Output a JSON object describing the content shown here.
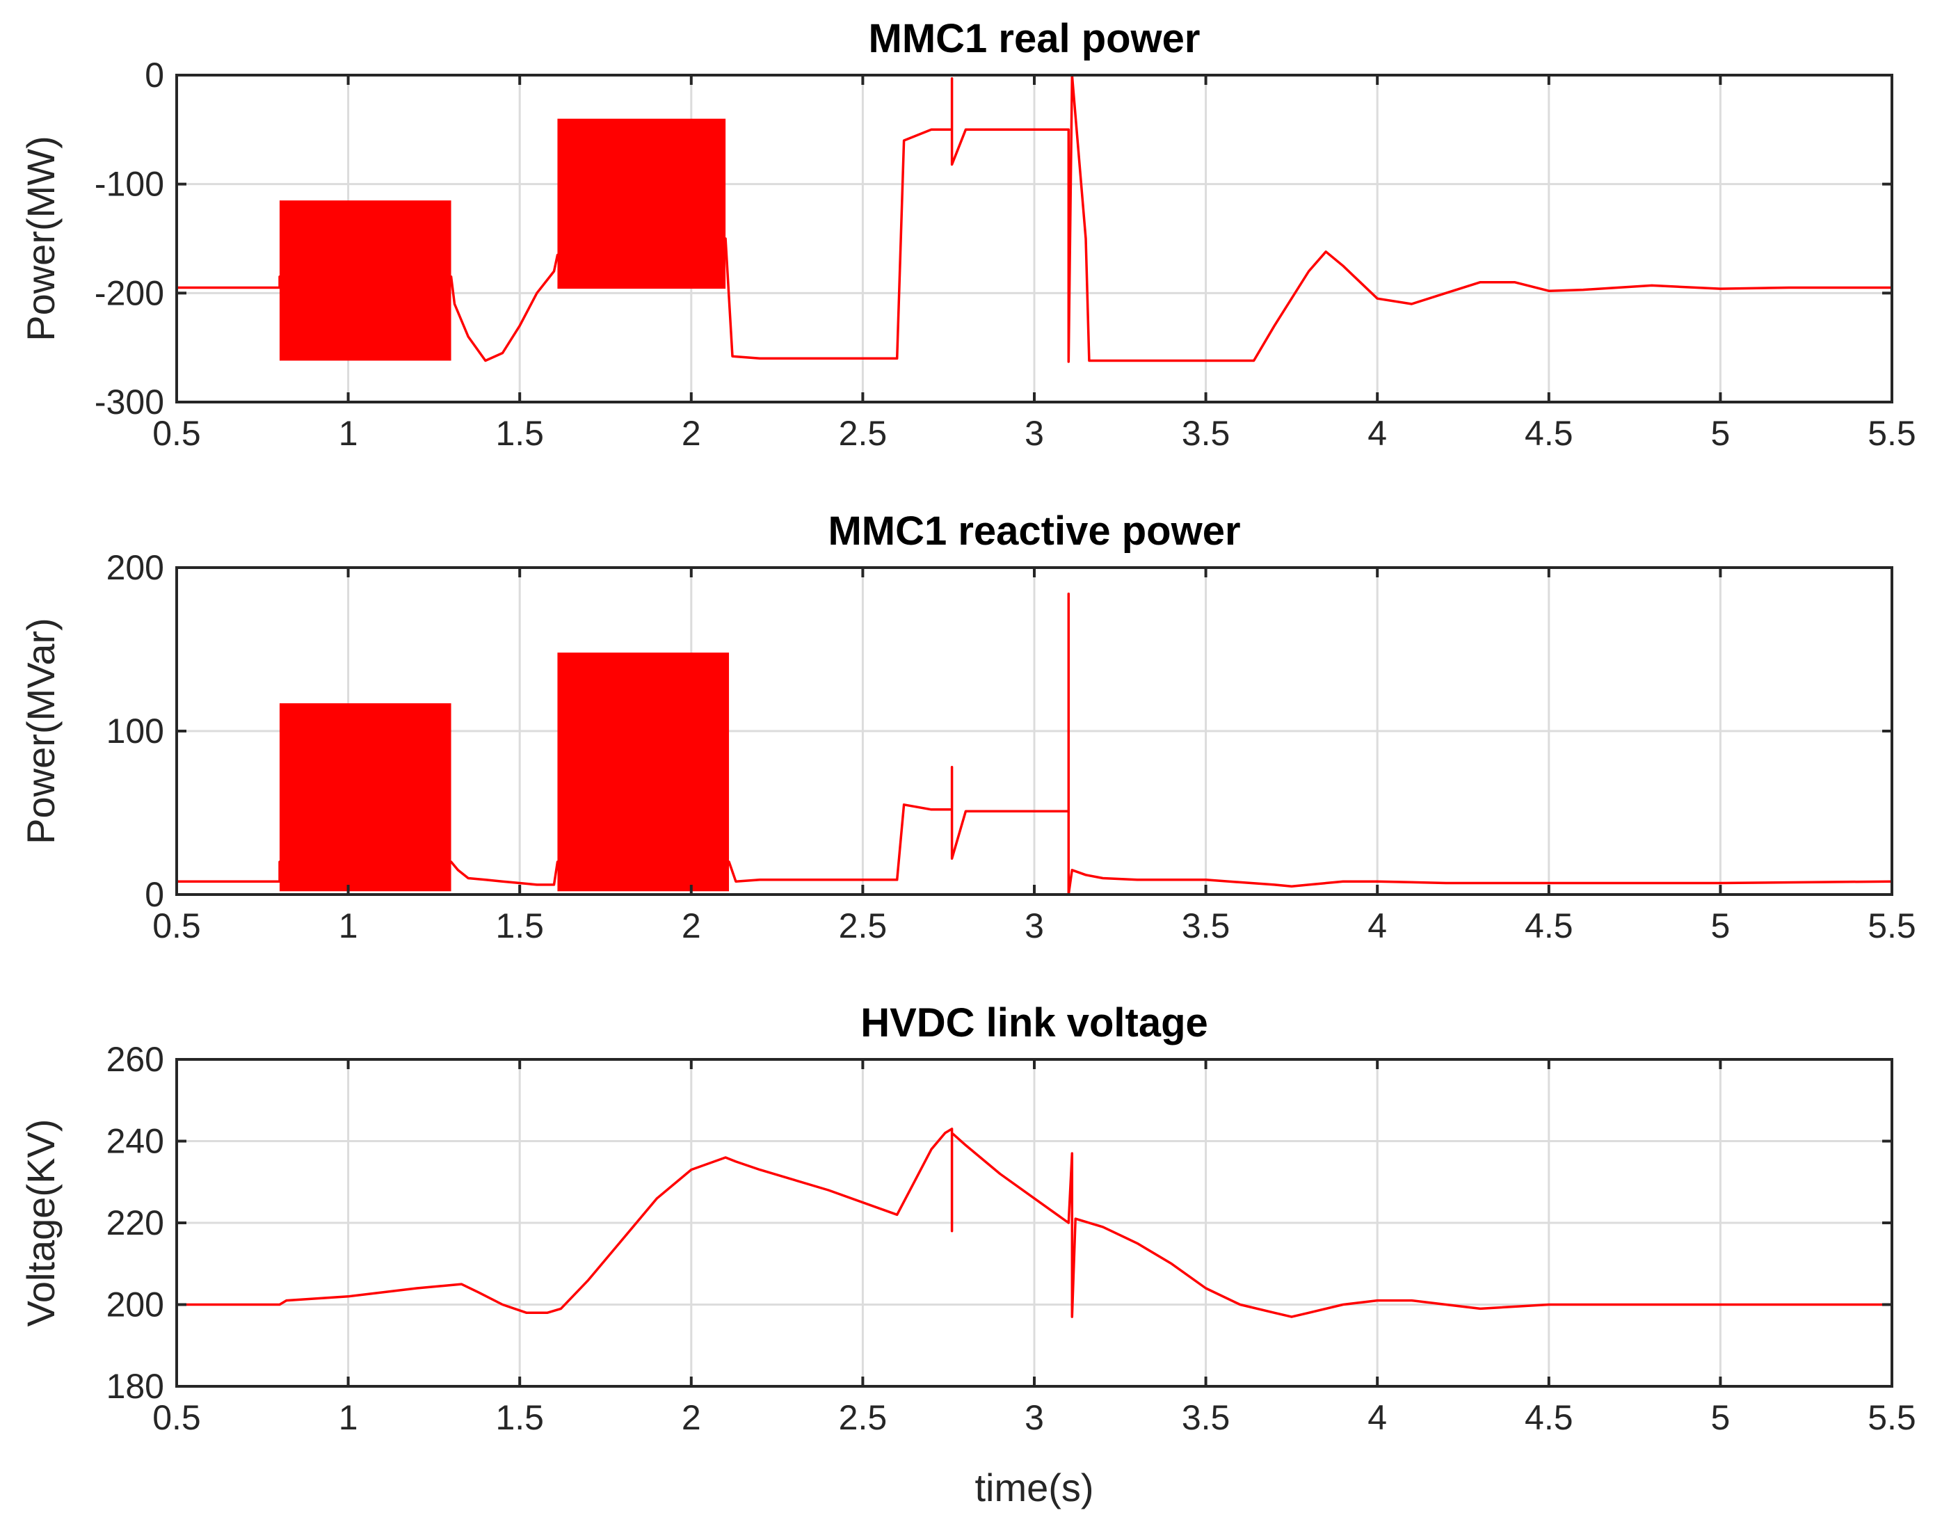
{
  "figure_colors": {
    "line": "#ff0000",
    "grid": "#dcdcdc",
    "axes": "#262626"
  },
  "chart_data": [
    {
      "type": "line",
      "title": "MMC1 real power",
      "xlabel": "",
      "ylabel": "Power(MW)",
      "xlim": [
        0.5,
        5.5
      ],
      "ylim": [
        -300,
        0
      ],
      "xticks": [
        0.5,
        1,
        1.5,
        2,
        2.5,
        3,
        3.5,
        4,
        4.5,
        5,
        5.5
      ],
      "xtick_labels": [
        "0.5",
        "1",
        "1.5",
        "2",
        "2.5",
        "3",
        "3.5",
        "4",
        "4.5",
        "5",
        "5.5"
      ],
      "yticks": [
        0,
        -100,
        -200,
        -300
      ],
      "ytick_labels": [
        "0",
        "-100",
        "-200",
        "-300"
      ],
      "grid": true,
      "series": [
        {
          "name": "MMC1 real power",
          "color": "#ff0000",
          "x": [
            0.5,
            0.8,
            0.8,
            1.3,
            1.31,
            1.35,
            1.4,
            1.45,
            1.5,
            1.55,
            1.6,
            1.61,
            2.1,
            2.12,
            2.2,
            2.6,
            2.6,
            2.62,
            2.7,
            2.76,
            2.76,
            2.76,
            2.8,
            3.1,
            3.1,
            3.11,
            3.15,
            3.16,
            3.2,
            3.4,
            3.64,
            3.7,
            3.8,
            3.85,
            3.9,
            4.0,
            4.1,
            4.2,
            4.3,
            4.4,
            4.5,
            4.6,
            4.8,
            5.0,
            5.2,
            5.5
          ],
          "y": [
            -195,
            -195,
            -185,
            -185,
            -210,
            -240,
            -262,
            -255,
            -230,
            -200,
            -180,
            -165,
            -150,
            -258,
            -260,
            -260,
            -260,
            -60,
            -50,
            -50,
            -3,
            -82,
            -50,
            -50,
            -263,
            0,
            -150,
            -262,
            -262,
            -262,
            -262,
            -230,
            -180,
            -162,
            -175,
            -205,
            -210,
            -200,
            -190,
            -190,
            -198,
            -197,
            -193,
            -196,
            -195,
            -195
          ],
          "bands": [
            {
              "x0": 0.8,
              "x1": 1.3,
              "low": -262,
              "high": -115
            },
            {
              "x0": 1.61,
              "x1": 2.1,
              "low": -196,
              "high": -40
            }
          ]
        }
      ]
    },
    {
      "type": "line",
      "title": "MMC1 reactive power",
      "xlabel": "",
      "ylabel": "Power(MVar)",
      "xlim": [
        0.5,
        5.5
      ],
      "ylim": [
        0,
        200
      ],
      "xticks": [
        0.5,
        1,
        1.5,
        2,
        2.5,
        3,
        3.5,
        4,
        4.5,
        5,
        5.5
      ],
      "xtick_labels": [
        "0.5",
        "1",
        "1.5",
        "2",
        "2.5",
        "3",
        "3.5",
        "4",
        "4.5",
        "5",
        "5.5"
      ],
      "yticks": [
        0,
        100,
        200
      ],
      "ytick_labels": [
        "0",
        "100",
        "200"
      ],
      "grid": true,
      "series": [
        {
          "name": "MMC1 reactive power",
          "color": "#ff0000",
          "x": [
            0.5,
            0.8,
            0.8,
            1.3,
            1.32,
            1.35,
            1.4,
            1.45,
            1.5,
            1.55,
            1.6,
            1.61,
            2.11,
            2.13,
            2.2,
            2.3,
            2.6,
            2.6,
            2.62,
            2.7,
            2.76,
            2.76,
            2.76,
            2.8,
            3.1,
            3.1,
            3.1,
            3.11,
            3.15,
            3.2,
            3.3,
            3.5,
            3.7,
            3.75,
            3.8,
            3.9,
            4.0,
            4.2,
            4.5,
            5.0,
            5.5
          ],
          "y": [
            8,
            8,
            20,
            20,
            15,
            10,
            9,
            8,
            7,
            6,
            6,
            20,
            20,
            8,
            9,
            9,
            9,
            9,
            55,
            52,
            52,
            78,
            22,
            51,
            51,
            184,
            0,
            15,
            12,
            10,
            9,
            9,
            6,
            5,
            6,
            8,
            8,
            7,
            7,
            7,
            8
          ],
          "bands": [
            {
              "x0": 0.8,
              "x1": 1.3,
              "low": 2,
              "high": 117
            },
            {
              "x0": 1.61,
              "x1": 2.11,
              "low": 2,
              "high": 148
            }
          ]
        }
      ]
    },
    {
      "type": "line",
      "title": "HVDC link voltage",
      "xlabel": "time(s)",
      "ylabel": "Voltage(KV)",
      "xlim": [
        0.5,
        5.5
      ],
      "ylim": [
        180,
        260
      ],
      "xticks": [
        0.5,
        1,
        1.5,
        2,
        2.5,
        3,
        3.5,
        4,
        4.5,
        5,
        5.5
      ],
      "xtick_labels": [
        "0.5",
        "1",
        "1.5",
        "2",
        "2.5",
        "3",
        "3.5",
        "4",
        "4.5",
        "5",
        "5.5"
      ],
      "yticks": [
        180,
        200,
        220,
        240,
        260
      ],
      "ytick_labels": [
        "180",
        "200",
        "220",
        "240",
        "260"
      ],
      "grid": true,
      "series": [
        {
          "name": "HVDC link voltage",
          "color": "#ff0000",
          "x": [
            0.5,
            0.8,
            0.82,
            1.0,
            1.2,
            1.33,
            1.38,
            1.45,
            1.52,
            1.58,
            1.62,
            1.7,
            1.8,
            1.9,
            2.0,
            2.1,
            2.13,
            2.2,
            2.4,
            2.6,
            2.65,
            2.7,
            2.74,
            2.76,
            2.76,
            2.76,
            2.8,
            2.9,
            3.0,
            3.1,
            3.11,
            3.11,
            3.12,
            3.2,
            3.3,
            3.4,
            3.5,
            3.6,
            3.7,
            3.75,
            3.8,
            3.9,
            4.0,
            4.1,
            4.2,
            4.3,
            4.5,
            4.7,
            5.0,
            5.5
          ],
          "y": [
            200,
            200,
            201,
            202,
            204,
            205,
            203,
            200,
            198,
            198,
            199,
            206,
            216,
            226,
            233,
            236,
            235,
            233,
            228,
            222,
            230,
            238,
            242,
            243,
            218,
            242,
            239,
            232,
            226,
            220,
            237,
            197,
            221,
            219,
            215,
            210,
            204,
            200,
            198,
            197,
            198,
            200,
            201,
            201,
            200,
            199,
            200,
            200,
            200,
            200
          ]
        }
      ]
    }
  ]
}
